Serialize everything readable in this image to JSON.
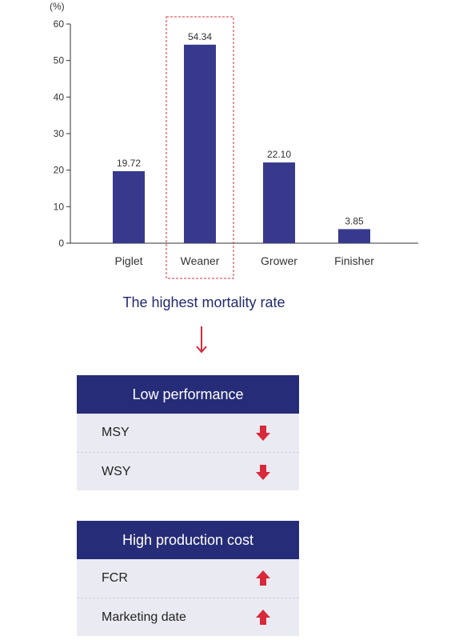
{
  "chart_data": {
    "type": "bar",
    "unit_label": "(%)",
    "categories": [
      "Piglet",
      "Weaner",
      "Grower",
      "Finisher"
    ],
    "values": [
      19.72,
      54.34,
      22.1,
      3.85
    ],
    "value_labels": [
      "19.72",
      "54.34",
      "22.10",
      "3.85"
    ],
    "ylim": [
      0,
      60
    ],
    "yticks": [
      0,
      10,
      20,
      30,
      40,
      50,
      60
    ],
    "bar_color": "#373a8c",
    "highlight_category": "Weaner",
    "highlight_color": "#e0303a"
  },
  "headline": "The highest mortality rate",
  "panels": [
    {
      "title": "Low performance",
      "rows": [
        {
          "label": "MSY",
          "direction": "down",
          "icon": "arrow-down-icon"
        },
        {
          "label": "WSY",
          "direction": "down",
          "icon": "arrow-down-icon"
        }
      ]
    },
    {
      "title": "High production cost",
      "rows": [
        {
          "label": "FCR",
          "direction": "up",
          "icon": "arrow-up-icon"
        },
        {
          "label": "Marketing date",
          "direction": "up",
          "icon": "arrow-up-icon"
        }
      ]
    }
  ],
  "colors": {
    "header_bg": "#262c78",
    "row_bg": "#eaeaf2",
    "accent_red": "#d9283a"
  }
}
